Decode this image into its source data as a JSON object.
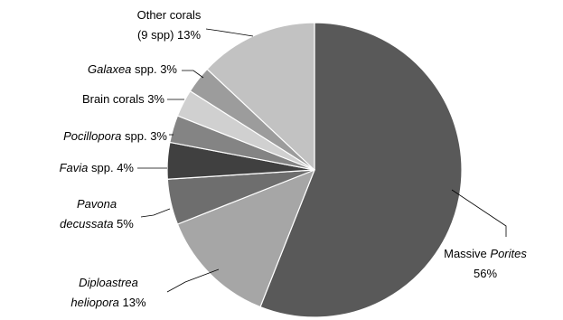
{
  "chart_data": {
    "type": "pie",
    "start_angle_deg": 0,
    "direction": "clockwise",
    "slices": [
      {
        "key": "massive-porites",
        "value": 56,
        "color": "#595959",
        "label": [
          [
            {
              "t": "Massive "
            },
            {
              "t": "Porites",
              "i": true
            }
          ],
          [
            {
              "t": "56%"
            }
          ]
        ]
      },
      {
        "key": "diploastrea-heliopora",
        "value": 13,
        "color": "#a6a6a6",
        "label": [
          [
            {
              "t": "Diploastrea",
              "i": true
            }
          ],
          [
            {
              "t": "heliopora",
              "i": true
            },
            {
              "t": " 13%"
            }
          ]
        ]
      },
      {
        "key": "pavona-decussata",
        "value": 5,
        "color": "#6e6e6e",
        "label": [
          [
            {
              "t": "Pavona",
              "i": true
            }
          ],
          [
            {
              "t": "decussata",
              "i": true
            },
            {
              "t": " 5%"
            }
          ]
        ]
      },
      {
        "key": "favia",
        "value": 4,
        "color": "#404040",
        "label": [
          [
            {
              "t": "Favia",
              "i": true
            },
            {
              "t": " spp. 4%"
            }
          ]
        ]
      },
      {
        "key": "pocillopora",
        "value": 3,
        "color": "#848484",
        "label": [
          [
            {
              "t": "Pocillopora",
              "i": true
            },
            {
              "t": " spp. 3%"
            }
          ]
        ]
      },
      {
        "key": "brain-corals",
        "value": 3,
        "color": "#d0d0d0",
        "label": [
          [
            {
              "t": "Brain corals 3%"
            }
          ]
        ]
      },
      {
        "key": "galaxea",
        "value": 3,
        "color": "#9c9c9c",
        "label": [
          [
            {
              "t": "Galaxea",
              "i": true
            },
            {
              "t": " spp. 3%"
            }
          ]
        ]
      },
      {
        "key": "other-corals",
        "value": 13,
        "color": "#c2c2c2",
        "label": [
          [
            {
              "t": "Other corals"
            }
          ],
          [
            {
              "t": "(9 spp) 13%"
            }
          ]
        ]
      }
    ]
  }
}
